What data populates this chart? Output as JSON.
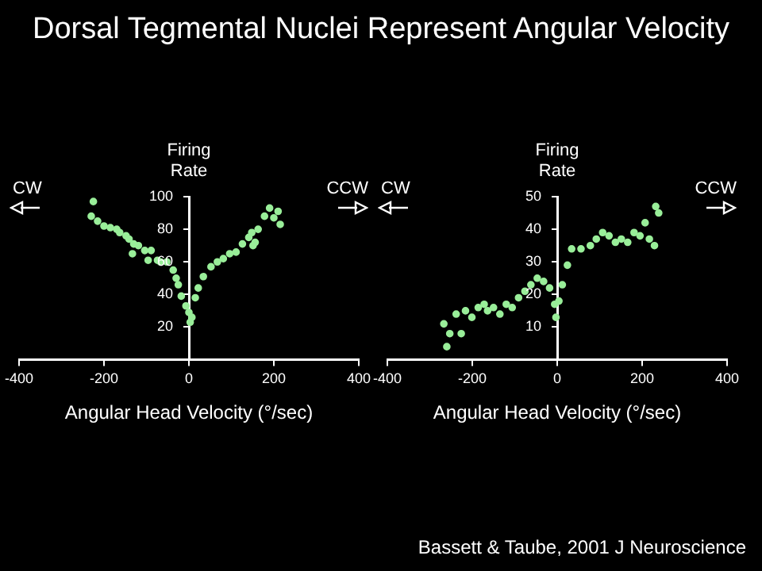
{
  "chart_data": [
    {
      "type": "scatter",
      "title": "Dorsal Tegmental Nuclei Represent Angular Velocity",
      "xlabel": "Angular Head Velocity (°/sec)",
      "ylabel": "Firing Rate",
      "annotations": [
        "CW",
        "CCW"
      ],
      "xlim": [
        -400,
        400
      ],
      "xticks": [
        -400,
        -200,
        0,
        200,
        400
      ],
      "ylim": [
        0,
        100
      ],
      "yticks": [
        20,
        40,
        60,
        80,
        100
      ],
      "grid": false,
      "legend": false,
      "marker": "circle",
      "series": [
        {
          "color": "#99ee99",
          "x": [
            -225,
            -230,
            -215,
            -200,
            -185,
            -170,
            -163,
            -148,
            -141,
            -130,
            -119,
            -104,
            -89,
            -133,
            -96,
            -74,
            -67,
            -52,
            -37,
            -30,
            -25,
            -18,
            -7,
            0,
            7,
            3,
            15,
            22,
            34,
            52,
            67,
            81,
            96,
            111,
            126,
            141,
            151,
            148,
            163,
            156,
            178,
            190,
            200,
            215,
            210
          ],
          "values": [
            97,
            88,
            85,
            82,
            81,
            80,
            78,
            76,
            74,
            71,
            70,
            67,
            67,
            65,
            61,
            61,
            60,
            60,
            55,
            50,
            46,
            39,
            33,
            29,
            26,
            23,
            38,
            44,
            51,
            57,
            60,
            62,
            65,
            66,
            71,
            75,
            70,
            78,
            80,
            72,
            88,
            93,
            87,
            83,
            91
          ]
        }
      ]
    },
    {
      "type": "scatter",
      "xlabel": "Angular Head Velocity (°/sec)",
      "ylabel": "Firing Rate",
      "annotations": [
        "CW",
        "CCW",
        "Bassett & Taube, 2001 J Neuroscience"
      ],
      "xlim": [
        -400,
        400
      ],
      "xticks": [
        -400,
        -200,
        0,
        200,
        400
      ],
      "ylim": [
        0,
        50
      ],
      "yticks": [
        10,
        20,
        30,
        40,
        50
      ],
      "grid": false,
      "legend": false,
      "marker": "circle",
      "series": [
        {
          "color": "#99ee99",
          "x": [
            -267,
            -260,
            -253,
            -238,
            -226,
            -216,
            -201,
            -186,
            -172,
            -164,
            -150,
            -135,
            -120,
            -106,
            -91,
            -76,
            -62,
            -47,
            -32,
            -18,
            -6,
            -3,
            4,
            12,
            24,
            34,
            56,
            78,
            92,
            107,
            122,
            137,
            151,
            166,
            181,
            195,
            207,
            217,
            229,
            232,
            239
          ],
          "values": [
            11,
            4,
            8,
            14,
            8,
            15,
            13,
            16,
            17,
            15,
            16,
            14,
            17,
            16,
            19,
            21,
            23,
            25,
            24,
            22,
            17,
            13,
            18,
            23,
            29,
            34,
            34,
            35,
            37,
            39,
            38,
            36,
            37,
            36,
            39,
            38,
            42,
            37,
            35,
            47,
            45
          ]
        }
      ]
    }
  ]
}
